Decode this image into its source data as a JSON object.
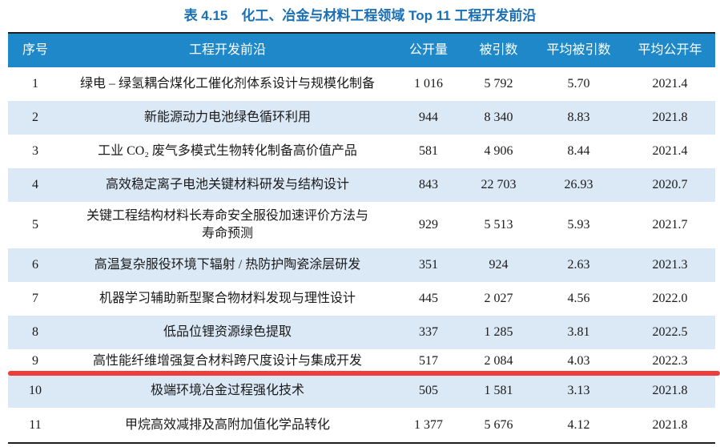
{
  "page": {
    "title": "表 4.15　化工、冶金与材料工程领域 Top 11 工程开发前沿"
  },
  "table": {
    "columns": {
      "no": "序号",
      "frontier": "工程开发前沿",
      "publications": "公开量",
      "citations": "被引数",
      "avg_citations": "平均被引数",
      "avg_year": "平均公开年"
    },
    "rows": [
      {
        "no": "1",
        "frontier": "绿电 – 绿氢耦合煤化工催化剂体系设计与规模化制备",
        "publications": "1 016",
        "citations": "5 792",
        "avg_citations": "5.70",
        "avg_year": "2021.4"
      },
      {
        "no": "2",
        "frontier": "新能源动力电池绿色循环利用",
        "publications": "944",
        "citations": "8 340",
        "avg_citations": "8.83",
        "avg_year": "2021.8"
      },
      {
        "no": "3",
        "frontier": "工业 CO₂ 废气多模式生物转化制备高价值产品",
        "publications": "581",
        "citations": "4 906",
        "avg_citations": "8.44",
        "avg_year": "2021.4"
      },
      {
        "no": "4",
        "frontier": "高效稳定离子电池关键材料研发与结构设计",
        "publications": "843",
        "citations": "22 703",
        "avg_citations": "26.93",
        "avg_year": "2020.7"
      },
      {
        "no": "5",
        "frontier": "关键工程结构材料长寿命安全服役加速评价方法与\n寿命预测",
        "publications": "929",
        "citations": "5 513",
        "avg_citations": "5.93",
        "avg_year": "2021.7"
      },
      {
        "no": "6",
        "frontier": "高温复杂服役环境下辐射 / 热防护陶瓷涂层研发",
        "publications": "351",
        "citations": "924",
        "avg_citations": "2.63",
        "avg_year": "2021.3"
      },
      {
        "no": "7",
        "frontier": "机器学习辅助新型聚合物材料发现与理性设计",
        "publications": "445",
        "citations": "2 027",
        "avg_citations": "4.56",
        "avg_year": "2022.0"
      },
      {
        "no": "8",
        "frontier": "低品位锂资源绿色提取",
        "publications": "337",
        "citations": "1 285",
        "avg_citations": "3.81",
        "avg_year": "2022.5"
      },
      {
        "no": "9",
        "frontier": "高性能纤维增强复合材料跨尺度设计与集成开发",
        "publications": "517",
        "citations": "2 084",
        "avg_citations": "4.03",
        "avg_year": "2022.3"
      },
      {
        "no": "10",
        "frontier": "极端环境冶金过程强化技术",
        "publications": "505",
        "citations": "1 581",
        "avg_citations": "3.13",
        "avg_year": "2021.8"
      },
      {
        "no": "11",
        "frontier": "甲烷高效减排及高附加值化学品转化",
        "publications": "1 377",
        "citations": "5 676",
        "avg_citations": "4.12",
        "avg_year": "2021.8"
      }
    ]
  },
  "highlight": {
    "type": "red-underline",
    "after_row_no": "9"
  },
  "colors": {
    "header_bg": "#1e88c8",
    "header_text": "#ffffff",
    "stripe_bg": "#dbe8f5",
    "title_text": "#1a6fb5",
    "underline": "#ee3c38",
    "border": "#1f1f1f",
    "body_text": "#1a1a1a"
  }
}
